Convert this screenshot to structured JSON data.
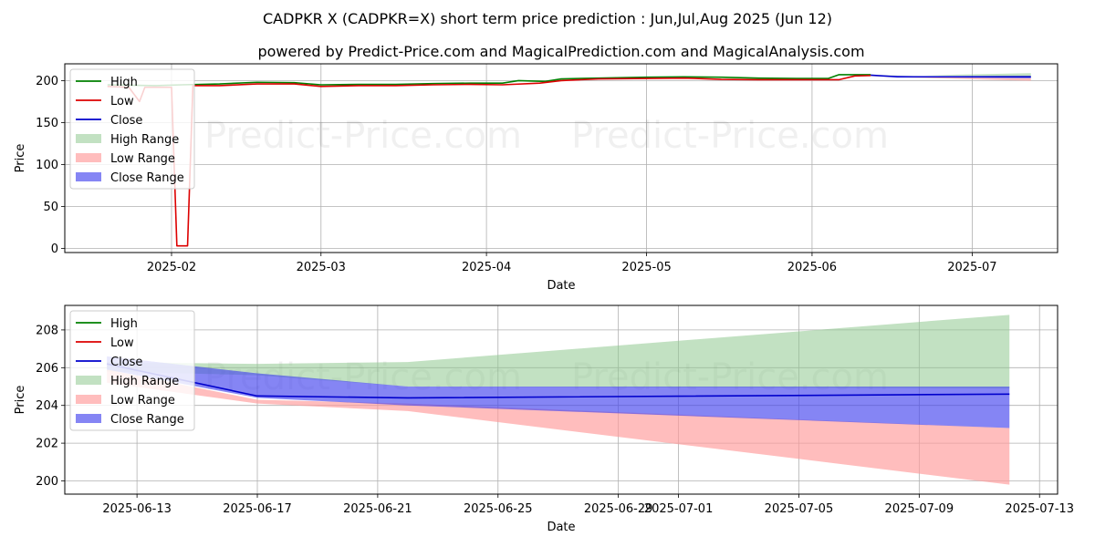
{
  "title": "CADPKR X (CADPKR=X) short term price prediction : Jun,Jul,Aug 2025 (Jun 12)",
  "subtitle": "powered by Predict-Price.com and MagicalPrediction.com and MagicalAnalysis.com",
  "watermark": "Predict-Price.com",
  "colors": {
    "high": "#008000",
    "low": "#dd0000",
    "close": "#0000cc",
    "high_range": "#8fc98f",
    "low_range": "#ff9a9a",
    "close_range": "#4444ee"
  },
  "chart_data": [
    {
      "id": "history",
      "type": "line",
      "xlabel": "Date",
      "ylabel": "Price",
      "xlim": [
        "2025-01-12",
        "2025-07-17"
      ],
      "ylim": [
        -5,
        220
      ],
      "yticks": [
        0,
        50,
        100,
        150,
        200
      ],
      "xticks": [
        {
          "date": "2025-02-01",
          "label": "2025-02"
        },
        {
          "date": "2025-03-01",
          "label": "2025-03"
        },
        {
          "date": "2025-04-01",
          "label": "2025-04"
        },
        {
          "date": "2025-05-01",
          "label": "2025-05"
        },
        {
          "date": "2025-06-01",
          "label": "2025-06"
        },
        {
          "date": "2025-07-01",
          "label": "2025-07"
        }
      ],
      "legend": [
        "High",
        "Low",
        "Close",
        "High Range",
        "Low Range",
        "Close Range"
      ],
      "legend_position": "top-left",
      "series": [
        {
          "name": "High",
          "points": [
            [
              "2025-01-20",
              195
            ],
            [
              "2025-01-29",
              194
            ],
            [
              "2025-02-03",
              195
            ],
            [
              "2025-02-10",
              196
            ],
            [
              "2025-02-17",
              198
            ],
            [
              "2025-02-24",
              197.5
            ],
            [
              "2025-03-01",
              195
            ],
            [
              "2025-03-08",
              195.5
            ],
            [
              "2025-03-15",
              195.5
            ],
            [
              "2025-03-22",
              196.5
            ],
            [
              "2025-03-29",
              197
            ],
            [
              "2025-04-04",
              197
            ],
            [
              "2025-04-07",
              200
            ],
            [
              "2025-04-12",
              199
            ],
            [
              "2025-04-15",
              202
            ],
            [
              "2025-04-22",
              203
            ],
            [
              "2025-05-01",
              204
            ],
            [
              "2025-05-08",
              204.5
            ],
            [
              "2025-05-15",
              204
            ],
            [
              "2025-05-22",
              203
            ],
            [
              "2025-05-29",
              202.5
            ],
            [
              "2025-06-04",
              202.5
            ],
            [
              "2025-06-06",
              207
            ],
            [
              "2025-06-12",
              207
            ]
          ]
        },
        {
          "name": "Low",
          "points": [
            [
              "2025-01-20",
              193
            ],
            [
              "2025-01-24",
              192
            ],
            [
              "2025-01-26",
              175
            ],
            [
              "2025-01-27",
              192
            ],
            [
              "2025-02-01",
              192
            ],
            [
              "2025-02-02",
              3
            ],
            [
              "2025-02-04",
              3
            ],
            [
              "2025-02-05",
              194
            ],
            [
              "2025-02-10",
              194
            ],
            [
              "2025-02-17",
              196
            ],
            [
              "2025-02-24",
              196
            ],
            [
              "2025-03-01",
              193
            ],
            [
              "2025-03-08",
              194
            ],
            [
              "2025-03-15",
              194
            ],
            [
              "2025-03-22",
              195
            ],
            [
              "2025-03-29",
              195.5
            ],
            [
              "2025-04-04",
              195
            ],
            [
              "2025-04-11",
              197
            ],
            [
              "2025-04-15",
              200
            ],
            [
              "2025-04-22",
              202
            ],
            [
              "2025-05-01",
              202.5
            ],
            [
              "2025-05-08",
              203
            ],
            [
              "2025-05-15",
              201.5
            ],
            [
              "2025-05-22",
              201
            ],
            [
              "2025-05-29",
              201
            ],
            [
              "2025-06-06",
              201
            ],
            [
              "2025-06-09",
              205.5
            ],
            [
              "2025-06-12",
              206
            ]
          ]
        },
        {
          "name": "Close",
          "points": [
            [
              "2025-06-12",
              206.5
            ],
            [
              "2025-06-17",
              204.5
            ],
            [
              "2025-07-12",
              204.6
            ]
          ]
        }
      ],
      "bands": [
        {
          "name": "High Range",
          "points": [
            [
              "2025-06-12",
              206,
              206.5
            ],
            [
              "2025-06-22",
              206.3,
              206.3
            ],
            [
              "2025-07-12",
              204.9,
              208.8
            ]
          ]
        },
        {
          "name": "Low Range",
          "points": [
            [
              "2025-06-12",
              205.3,
              206.2
            ],
            [
              "2025-06-17",
              204.0,
              204.3
            ],
            [
              "2025-07-12",
              199.8,
              203.0
            ]
          ]
        },
        {
          "name": "Close Range",
          "points": [
            [
              "2025-06-12",
              206.2,
              206.5
            ],
            [
              "2025-06-17",
              204.1,
              205.7
            ],
            [
              "2025-06-22",
              204.0,
              205.0
            ],
            [
              "2025-07-12",
              202.8,
              205.0
            ]
          ]
        }
      ]
    },
    {
      "id": "forecast",
      "type": "line",
      "xlabel": "Date",
      "ylabel": "Price",
      "xlim": [
        "2025-06-10.6",
        "2025-07-13.6"
      ],
      "ylim": [
        199.3,
        209.3
      ],
      "yticks": [
        200,
        202,
        204,
        206,
        208
      ],
      "xticks": [
        {
          "date": "2025-06-13",
          "label": "2025-06-13"
        },
        {
          "date": "2025-06-17",
          "label": "2025-06-17"
        },
        {
          "date": "2025-06-21",
          "label": "2025-06-21"
        },
        {
          "date": "2025-06-25",
          "label": "2025-06-25"
        },
        {
          "date": "2025-06-29",
          "label": "2025-06-29"
        },
        {
          "date": "2025-07-01",
          "label": "2025-07-01"
        },
        {
          "date": "2025-07-05",
          "label": "2025-07-05"
        },
        {
          "date": "2025-07-09",
          "label": "2025-07-09"
        },
        {
          "date": "2025-07-13",
          "label": "2025-07-13"
        }
      ],
      "legend": [
        "High",
        "Low",
        "Close",
        "High Range",
        "Low Range",
        "Close Range"
      ],
      "legend_position": "top-left",
      "series": [
        {
          "name": "High",
          "points": []
        },
        {
          "name": "Low",
          "points": []
        },
        {
          "name": "Close",
          "points": [
            [
              "2025-06-12",
              206.2
            ],
            [
              "2025-06-17",
              204.5
            ],
            [
              "2025-06-22",
              204.4
            ],
            [
              "2025-07-12",
              204.6
            ]
          ]
        }
      ],
      "bands": [
        {
          "name": "High Range",
          "points": [
            [
              "2025-06-12",
              205.8,
              206.3
            ],
            [
              "2025-06-17",
              205.6,
              206.2
            ],
            [
              "2025-06-22",
              205.0,
              206.3
            ],
            [
              "2025-07-12",
              204.9,
              208.8
            ]
          ]
        },
        {
          "name": "Low Range",
          "points": [
            [
              "2025-06-12",
              205.2,
              205.9
            ],
            [
              "2025-06-17",
              204.1,
              204.3
            ],
            [
              "2025-06-22",
              203.7,
              204.1
            ],
            [
              "2025-07-12",
              199.8,
              202.8
            ]
          ]
        },
        {
          "name": "Close Range",
          "points": [
            [
              "2025-06-12",
              205.9,
              206.6
            ],
            [
              "2025-06-17",
              204.4,
              205.7
            ],
            [
              "2025-06-22",
              204.0,
              205.0
            ],
            [
              "2025-07-12",
              202.8,
              205.0
            ]
          ]
        }
      ]
    }
  ]
}
